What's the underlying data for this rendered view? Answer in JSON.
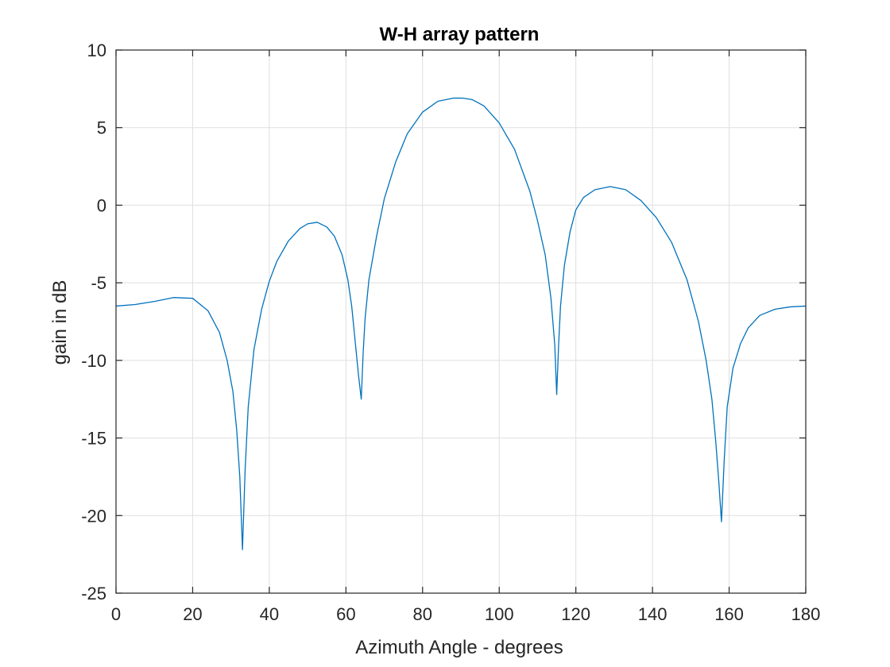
{
  "chart_data": {
    "type": "line",
    "title": "W-H array pattern",
    "xlabel": "Azimuth Angle - degrees",
    "ylabel": "gain in dB",
    "xlim": [
      0,
      180
    ],
    "ylim": [
      -25,
      10
    ],
    "xticks": [
      0,
      20,
      40,
      60,
      80,
      100,
      120,
      140,
      160,
      180
    ],
    "yticks": [
      10,
      5,
      0,
      -5,
      -10,
      -15,
      -20,
      -25
    ],
    "grid": true,
    "legend": "none",
    "colors": {
      "line": "#0072bd",
      "grid": "#dfdfdf",
      "axis": "#262626"
    },
    "series": [
      {
        "x": [
          0,
          5,
          10,
          15,
          20,
          24,
          27,
          29,
          30.5,
          31.5,
          32.3,
          33,
          33.7,
          34.5,
          36,
          38,
          40,
          42,
          45,
          48,
          50,
          52.5,
          55,
          57,
          59,
          60.5,
          61.5,
          62.5,
          63.3,
          64,
          64.5,
          65,
          66,
          68,
          70,
          73,
          76,
          80,
          84,
          88,
          90.5,
          93,
          96,
          100,
          104,
          108,
          110,
          112,
          113.5,
          114.5,
          115,
          115.5,
          116,
          117,
          118.5,
          120,
          122,
          125,
          129,
          133,
          137,
          141,
          145,
          149,
          152,
          154,
          155.5,
          156.5,
          157.3,
          158,
          158.7,
          159.5,
          161,
          163,
          165,
          168,
          172,
          176,
          180
        ],
        "y": [
          -6.5,
          -6.4,
          -6.2,
          -5.95,
          -6.0,
          -6.8,
          -8.2,
          -10.0,
          -12.0,
          -14.5,
          -17.5,
          -22.2,
          -17.0,
          -13.0,
          -9.3,
          -6.7,
          -4.9,
          -3.6,
          -2.3,
          -1.5,
          -1.2,
          -1.1,
          -1.4,
          -2.0,
          -3.2,
          -4.8,
          -6.5,
          -9.0,
          -11.0,
          -12.5,
          -9.5,
          -7.3,
          -4.8,
          -2.0,
          0.4,
          2.8,
          4.6,
          6.0,
          6.7,
          6.9,
          6.9,
          6.8,
          6.4,
          5.3,
          3.6,
          0.9,
          -1.0,
          -3.2,
          -6.0,
          -9.0,
          -12.2,
          -9.0,
          -6.5,
          -3.9,
          -1.7,
          -0.3,
          0.5,
          1.0,
          1.2,
          1.0,
          0.3,
          -0.8,
          -2.4,
          -4.8,
          -7.5,
          -10.0,
          -12.5,
          -15.2,
          -17.8,
          -20.4,
          -16.5,
          -13.0,
          -10.5,
          -8.9,
          -7.9,
          -7.1,
          -6.7,
          -6.55,
          -6.5
        ]
      }
    ]
  }
}
